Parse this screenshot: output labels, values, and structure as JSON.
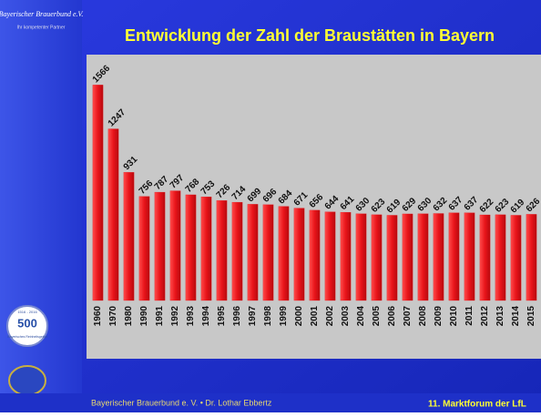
{
  "chart_data": {
    "type": "bar",
    "title": "Entwicklung der Zahl der Braustätten in Bayern",
    "categories": [
      "1960",
      "1970",
      "1980",
      "1990",
      "1991",
      "1992",
      "1993",
      "1994",
      "1995",
      "1996",
      "1997",
      "1998",
      "1999",
      "2000",
      "2001",
      "2002",
      "2003",
      "2004",
      "2005",
      "2006",
      "2007",
      "2008",
      "2009",
      "2010",
      "2011",
      "2012",
      "2013",
      "2014",
      "2015"
    ],
    "values": [
      1566,
      1247,
      931,
      756,
      787,
      797,
      768,
      753,
      726,
      714,
      699,
      696,
      684,
      671,
      656,
      644,
      641,
      630,
      623,
      619,
      629,
      630,
      632,
      637,
      637,
      622,
      623,
      619,
      626
    ],
    "color": "#e8141a",
    "ylim": [
      0,
      1800
    ]
  },
  "sidebar": {
    "logo_title": "Bayerischer Brauerbund e.V.",
    "logo_subtitle": "Ihr kompetenter Partner",
    "badge_number": "500",
    "badge_years": "1516 - 2016",
    "badge_text": "Bayerisches Reinheitsgebot"
  },
  "footer": {
    "left": "Bayerischer Brauerbund e. V. • Dr. Lothar Ebbertz",
    "right": "11. Marktforum der LfL"
  }
}
